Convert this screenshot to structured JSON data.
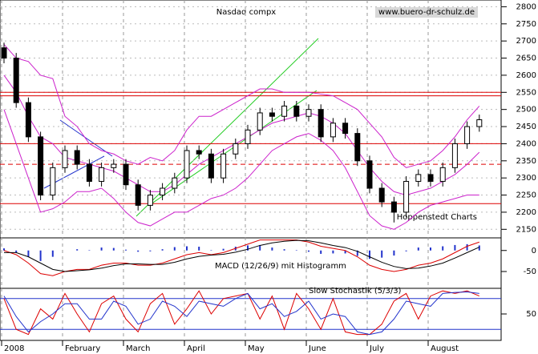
{
  "chart_data": [
    {
      "type": "candlestick",
      "title": "Nasdaq compx",
      "source": "www.buero-dr-schulz.de",
      "credit": "Hoppenstedt Charts",
      "categories": [
        "2008",
        null,
        null,
        null,
        null,
        "February",
        null,
        null,
        null,
        null,
        "March",
        null,
        null,
        null,
        null,
        "April",
        null,
        null,
        null,
        null,
        "May",
        null,
        null,
        null,
        null,
        "June",
        null,
        null,
        null,
        null,
        "July",
        null,
        null,
        null,
        null,
        "August",
        null,
        null,
        null,
        null
      ],
      "open": [
        2680,
        2650,
        2520,
        2420,
        2250,
        2330,
        2380,
        2340,
        2290,
        2330,
        2340,
        2280,
        2220,
        2250,
        2270,
        2300,
        2380,
        2370,
        2300,
        2370,
        2400,
        2440,
        2490,
        2480,
        2510,
        2480,
        2500,
        2420,
        2460,
        2430,
        2350,
        2270,
        2230,
        2200,
        2290,
        2310,
        2290,
        2330,
        2400,
        2450
      ],
      "high": [
        2695,
        2665,
        2535,
        2435,
        2345,
        2395,
        2395,
        2355,
        2345,
        2355,
        2355,
        2295,
        2265,
        2285,
        2315,
        2395,
        2395,
        2385,
        2385,
        2415,
        2455,
        2505,
        2505,
        2525,
        2525,
        2515,
        2515,
        2475,
        2475,
        2445,
        2365,
        2285,
        2245,
        2305,
        2325,
        2325,
        2345,
        2415,
        2465,
        2485
      ],
      "low": [
        2635,
        2505,
        2405,
        2235,
        2235,
        2315,
        2325,
        2275,
        2275,
        2315,
        2265,
        2205,
        2205,
        2235,
        2255,
        2285,
        2355,
        2285,
        2285,
        2355,
        2385,
        2425,
        2465,
        2465,
        2465,
        2465,
        2405,
        2405,
        2415,
        2335,
        2255,
        2215,
        2170,
        2185,
        2275,
        2275,
        2275,
        2315,
        2385,
        2435
      ],
      "close": [
        2650,
        2520,
        2420,
        2250,
        2330,
        2380,
        2340,
        2290,
        2330,
        2340,
        2280,
        2220,
        2250,
        2270,
        2300,
        2380,
        2370,
        2300,
        2370,
        2400,
        2440,
        2490,
        2480,
        2510,
        2480,
        2500,
        2420,
        2460,
        2430,
        2350,
        2270,
        2230,
        2200,
        2290,
        2310,
        2290,
        2330,
        2400,
        2450,
        2470
      ],
      "series": [
        {
          "color": "#cc22cc",
          "values": [
            2690,
            2650,
            2640,
            2600,
            2590,
            2480,
            2450,
            2400,
            2380,
            2370,
            2350,
            2340,
            2360,
            2350,
            2380,
            2440,
            2480,
            2480,
            2500,
            2520,
            2540,
            2560,
            2560,
            2550,
            2550,
            2550,
            2545,
            2540,
            2520,
            2500,
            2460,
            2420,
            2360,
            2330,
            2340,
            2350,
            2380,
            2420,
            2470,
            2510
          ]
        },
        {
          "color": "#cc22cc",
          "values": [
            2600,
            2550,
            2480,
            2420,
            2400,
            2360,
            2350,
            2340,
            2330,
            2320,
            2300,
            2280,
            2260,
            2260,
            2280,
            2310,
            2340,
            2360,
            2380,
            2400,
            2420,
            2440,
            2460,
            2470,
            2480,
            2490,
            2480,
            2460,
            2430,
            2380,
            2330,
            2290,
            2260,
            2250,
            2260,
            2270,
            2290,
            2310,
            2340,
            2375
          ]
        },
        {
          "color": "#cc22cc",
          "values": [
            2500,
            2400,
            2300,
            2200,
            2210,
            2230,
            2260,
            2260,
            2270,
            2240,
            2200,
            2170,
            2160,
            2180,
            2200,
            2200,
            2220,
            2240,
            2250,
            2270,
            2300,
            2340,
            2380,
            2400,
            2420,
            2430,
            2410,
            2380,
            2330,
            2260,
            2190,
            2160,
            2150,
            2170,
            2200,
            2220,
            2230,
            2240,
            2250,
            2250
          ]
        }
      ],
      "levels": [
        2550,
        2540,
        2400,
        2225
      ],
      "dashed_levels": [
        2340
      ],
      "level_color": "#dd0000",
      "ylim": [
        2125,
        2815
      ],
      "yticks": [
        2150,
        2200,
        2250,
        2300,
        2350,
        2400,
        2450,
        2500,
        2550,
        2600,
        2650,
        2700,
        2750,
        2800
      ],
      "grid": true
    },
    {
      "type": "macd",
      "label": "MACD (12/26/9) mit Histogramm",
      "series": [
        {
          "color": "#dd0000",
          "values": [
            0,
            -10,
            -30,
            -55,
            -60,
            -50,
            -45,
            -45,
            -35,
            -30,
            -30,
            -35,
            -35,
            -30,
            -20,
            -10,
            -5,
            -10,
            -5,
            5,
            15,
            25,
            25,
            25,
            25,
            20,
            10,
            5,
            0,
            -15,
            -35,
            -45,
            -50,
            -45,
            -35,
            -30,
            -20,
            -5,
            10,
            20
          ]
        },
        {
          "color": "#000000",
          "values": [
            -5,
            -5,
            -15,
            -30,
            -45,
            -50,
            -48,
            -46,
            -42,
            -36,
            -32,
            -32,
            -33,
            -33,
            -28,
            -20,
            -14,
            -11,
            -9,
            -4,
            3,
            12,
            18,
            22,
            24,
            23,
            18,
            12,
            7,
            -2,
            -15,
            -28,
            -38,
            -43,
            -42,
            -37,
            -30,
            -18,
            -5,
            8
          ]
        }
      ],
      "histogram": [
        5,
        -5,
        -15,
        -25,
        -15,
        0,
        3,
        1,
        7,
        6,
        2,
        -3,
        -2,
        3,
        8,
        10,
        9,
        1,
        4,
        9,
        12,
        13,
        7,
        3,
        1,
        -3,
        -8,
        -7,
        -7,
        -13,
        -20,
        -17,
        -12,
        -2,
        7,
        7,
        10,
        13,
        15,
        12
      ],
      "histogram_color": "#2233cc",
      "ylim": [
        -90,
        30
      ],
      "yticks": [
        0,
        -50
      ]
    },
    {
      "type": "line",
      "label": "Slow Stochastik (5/3/3)",
      "series": [
        {
          "color": "#dd0000",
          "values": [
            80,
            20,
            10,
            60,
            40,
            90,
            50,
            15,
            70,
            85,
            40,
            15,
            70,
            90,
            30,
            60,
            95,
            50,
            80,
            85,
            90,
            40,
            85,
            20,
            90,
            60,
            20,
            80,
            15,
            10,
            10,
            30,
            75,
            90,
            40,
            85,
            95,
            90,
            95,
            85
          ]
        },
        {
          "color": "#2233cc",
          "values": [
            85,
            45,
            15,
            35,
            50,
            70,
            70,
            40,
            40,
            75,
            65,
            30,
            40,
            75,
            65,
            45,
            75,
            70,
            65,
            80,
            90,
            60,
            70,
            45,
            55,
            75,
            40,
            50,
            45,
            15,
            10,
            15,
            40,
            75,
            70,
            65,
            90,
            92,
            93,
            90
          ]
        }
      ],
      "levels": [
        80,
        20
      ],
      "level_color": "#2233cc",
      "ylim": [
        0,
        100
      ],
      "yticks": [
        50
      ]
    }
  ]
}
